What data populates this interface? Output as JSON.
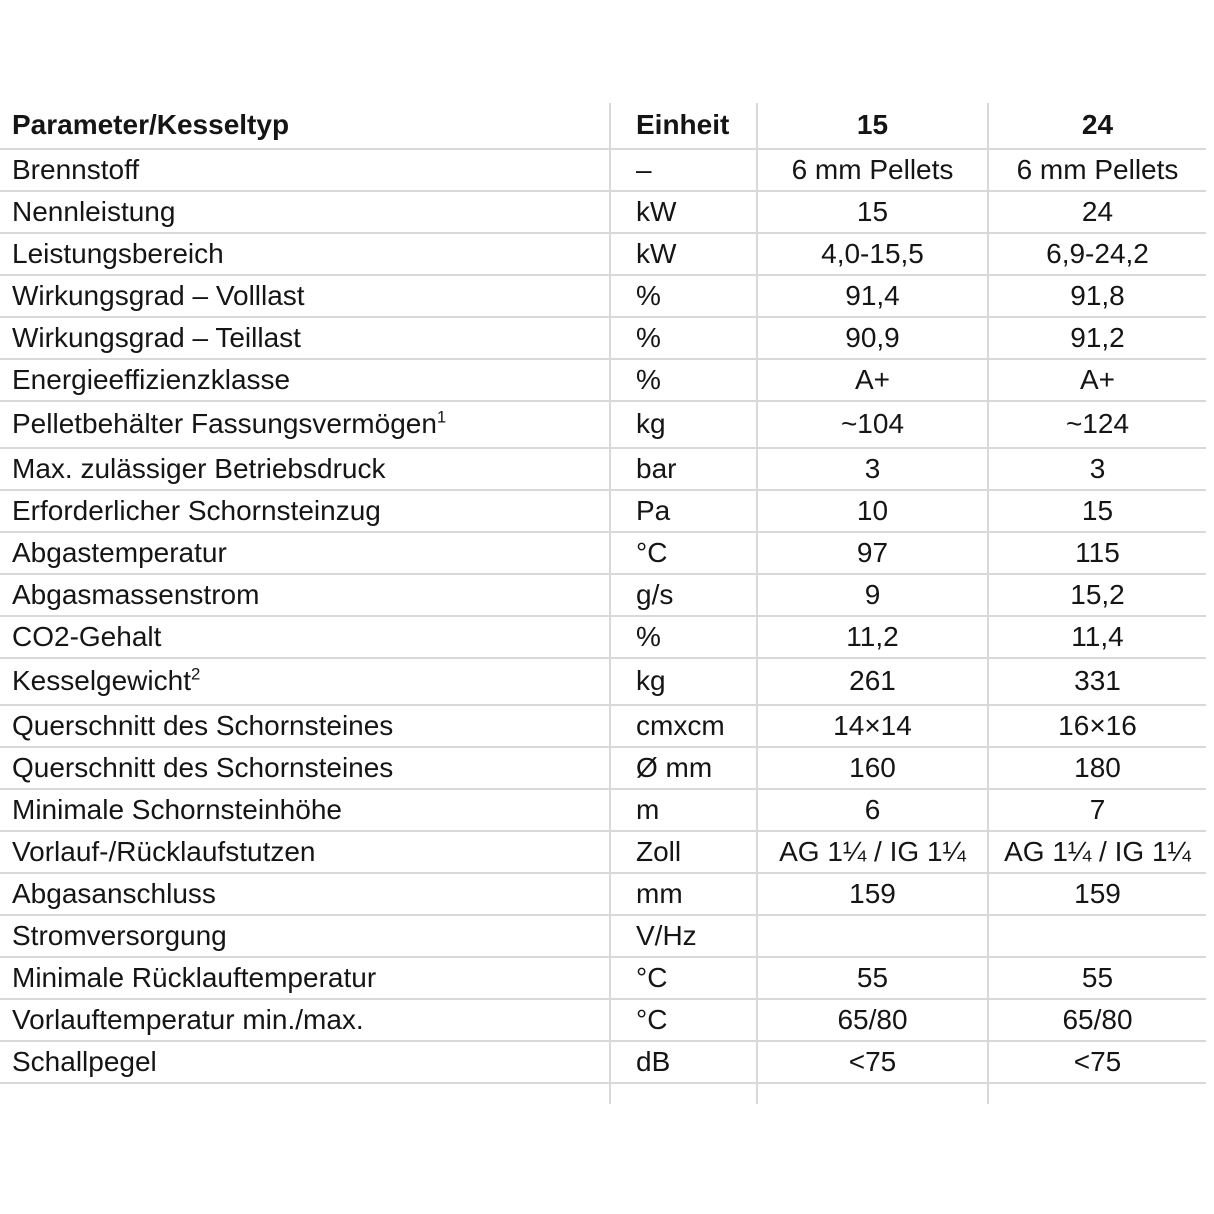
{
  "colors": {
    "grid": "#d9d9d9",
    "text": "#151515",
    "background": "#ffffff"
  },
  "table": {
    "columns": [
      "Parameter/Kesseltyp",
      "Einheit",
      "15",
      "24"
    ],
    "rows": [
      {
        "param": "Brennstoff",
        "sup": "",
        "unit": "–",
        "v15": "6 mm Pellets",
        "v24": "6 mm Pellets"
      },
      {
        "param": "Nennleistung",
        "sup": "",
        "unit": "kW",
        "v15": "15",
        "v24": "24"
      },
      {
        "param": "Leistungsbereich",
        "sup": "",
        "unit": "kW",
        "v15": "4,0-15,5",
        "v24": "6,9-24,2"
      },
      {
        "param": "Wirkungsgrad – Volllast",
        "sup": "",
        "unit": "%",
        "v15": "91,4",
        "v24": "91,8"
      },
      {
        "param": "Wirkungsgrad – Teillast",
        "sup": "",
        "unit": "%",
        "v15": "90,9",
        "v24": "91,2"
      },
      {
        "param": "Energieeffizienzklasse",
        "sup": "",
        "unit": "%",
        "v15": "A+",
        "v24": "A+"
      },
      {
        "param": "Pelletbehälter Fassungsvermögen",
        "sup": "1",
        "unit": "kg",
        "v15": "~104",
        "v24": "~124"
      },
      {
        "param": "Max. zulässiger Betriebsdruck",
        "sup": "",
        "unit": "bar",
        "v15": "3",
        "v24": "3"
      },
      {
        "param": "Erforderlicher Schornsteinzug",
        "sup": "",
        "unit": "Pa",
        "v15": "10",
        "v24": "15"
      },
      {
        "param": "Abgastemperatur",
        "sup": "",
        "unit": "°C",
        "v15": "97",
        "v24": "115"
      },
      {
        "param": "Abgasmassenstrom",
        "sup": "",
        "unit": "g/s",
        "v15": "9",
        "v24": "15,2"
      },
      {
        "param": "CO2-Gehalt",
        "sup": "",
        "unit": "%",
        "v15": "11,2",
        "v24": "11,4"
      },
      {
        "param": "Kesselgewicht",
        "sup": "2",
        "unit": "kg",
        "v15": "261",
        "v24": "331"
      },
      {
        "param": "Querschnitt des Schornsteines",
        "sup": "",
        "unit": "cmxcm",
        "v15": "14×14",
        "v24": "16×16"
      },
      {
        "param": "Querschnitt des Schornsteines",
        "sup": "",
        "unit": "Ø mm",
        "v15": "160",
        "v24": "180"
      },
      {
        "param": "Minimale Schornsteinhöhe",
        "sup": "",
        "unit": "m",
        "v15": "6",
        "v24": "7"
      },
      {
        "param": "Vorlauf-/Rücklaufstutzen",
        "sup": "",
        "unit": "Zoll",
        "v15": "AG 1¼ / IG 1¼",
        "v24": "AG 1¼ / IG 1¼"
      },
      {
        "param": "Abgasanschluss",
        "sup": "",
        "unit": "mm",
        "v15": "159",
        "v24": "159"
      },
      {
        "param": "Stromversorgung",
        "sup": "",
        "unit": "V/Hz",
        "v15": "",
        "v24": ""
      },
      {
        "param": "Minimale Rücklauftemperatur",
        "sup": "",
        "unit": "°C",
        "v15": "55",
        "v24": "55"
      },
      {
        "param": "Vorlauftemperatur min./max.",
        "sup": "",
        "unit": "°C",
        "v15": "65/80",
        "v24": "65/80"
      },
      {
        "param": "Schallpegel",
        "sup": "",
        "unit": "dB",
        "v15": "<75",
        "v24": "<75"
      }
    ]
  }
}
